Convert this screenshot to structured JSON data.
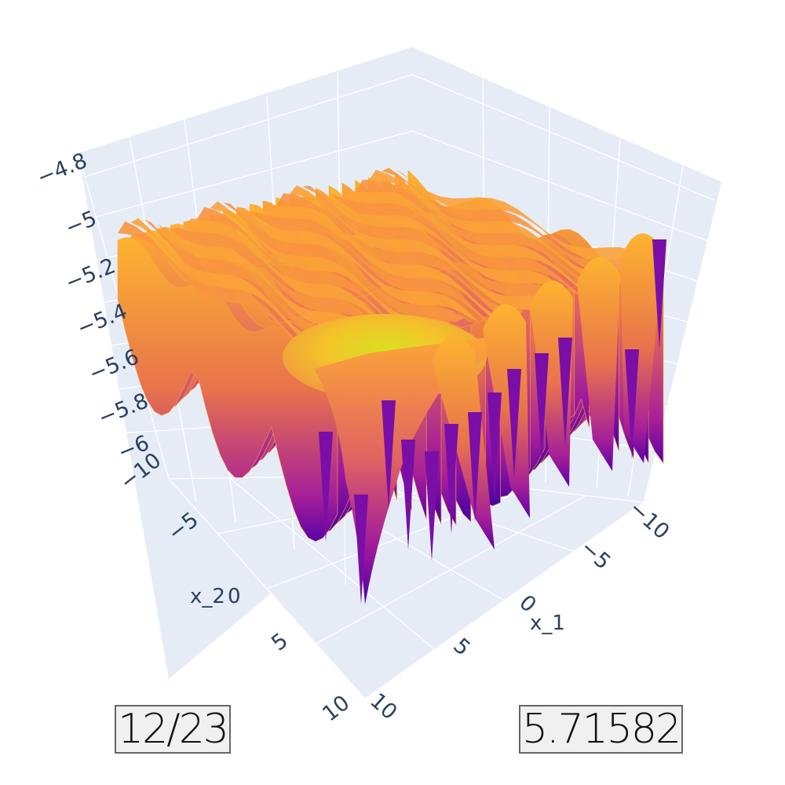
{
  "chart_data": {
    "type": "surface",
    "colorscale": "plasma",
    "colors": {
      "low": "#0d0887",
      "mid": "#cc4778",
      "high": "#f0f921",
      "pane": "#e5ecf6",
      "grid": "#ffffff",
      "tick": "#2a3f5f"
    },
    "x_axis": {
      "label": "x_1",
      "range": [
        -10,
        10
      ],
      "ticks": [
        "−10",
        "−5",
        "0",
        "5",
        "10"
      ]
    },
    "y_axis": {
      "label": "x_2",
      "range": [
        -10,
        10
      ],
      "ticks": [
        "−10",
        "−5",
        "0",
        "5",
        "10"
      ]
    },
    "z_axis": {
      "label": "",
      "range": [
        -6.05,
        -4.8
      ],
      "ticks": [
        "−4.8",
        "−5",
        "−5.2",
        "−5.4",
        "−5.6",
        "−5.8",
        "−6"
      ]
    },
    "surface_note": "oscillating ridges, deep narrow troughs near center"
  },
  "annotations": {
    "left_box": "12/23",
    "right_box": "5.71582"
  }
}
